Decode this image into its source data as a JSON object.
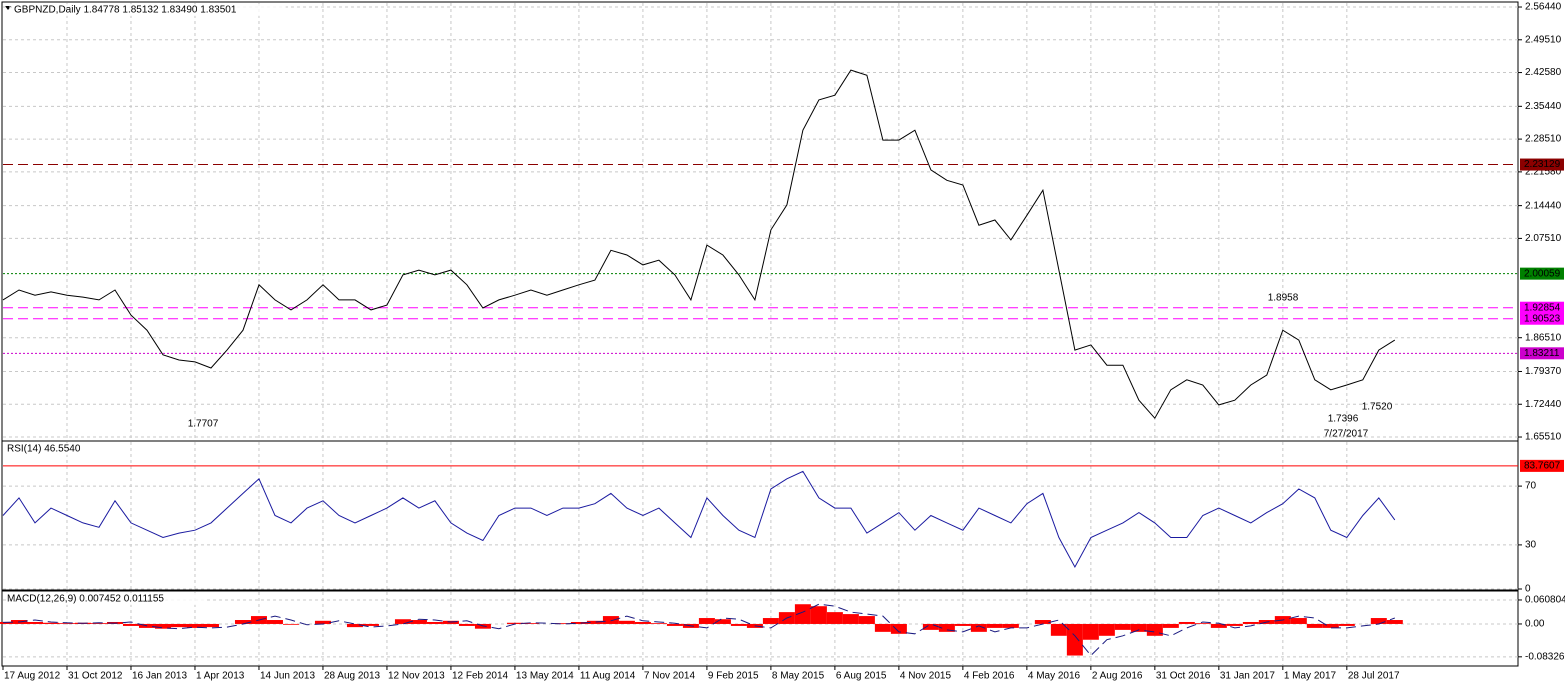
{
  "chart_data": [
    {
      "type": "line",
      "title": "GBPNZD,Daily 1.84778 1.85132 1.83490 1.83501",
      "color": "#000000",
      "grid": true,
      "x": [
        0,
        1,
        2,
        3,
        4,
        5,
        6,
        7,
        8,
        9,
        10,
        11,
        12,
        13,
        14,
        15,
        16,
        17,
        18,
        19,
        20,
        21,
        22,
        23,
        24,
        25,
        26,
        27,
        28,
        29,
        30,
        31,
        32,
        33,
        34,
        35,
        36,
        37,
        38,
        39,
        40,
        41,
        42,
        43,
        44,
        45,
        46,
        47,
        48,
        49,
        50,
        51,
        52,
        53,
        54,
        55,
        56,
        57,
        58,
        59,
        60,
        61,
        62,
        63,
        64,
        65,
        66,
        67,
        68,
        69,
        70,
        71,
        72,
        73,
        74,
        75,
        76,
        77,
        78,
        79,
        80,
        81,
        82,
        83,
        84,
        85,
        86,
        87
      ],
      "values": [
        1.945,
        1.966,
        1.955,
        1.962,
        1.955,
        1.951,
        1.945,
        1.966,
        1.913,
        1.881,
        1.829,
        1.818,
        1.814,
        1.801,
        1.839,
        1.881,
        1.977,
        1.945,
        1.924,
        1.945,
        1.977,
        1.945,
        1.945,
        1.924,
        1.934,
        1.998,
        2.008,
        1.998,
        2.008,
        1.977,
        1.928,
        1.945,
        1.955,
        1.966,
        1.955,
        1.966,
        1.977,
        1.987,
        2.05,
        2.04,
        2.019,
        2.029,
        1.998,
        1.945,
        2.061,
        2.04,
        1.998,
        1.945,
        2.093,
        2.146,
        2.304,
        2.368,
        2.378,
        2.431,
        2.42,
        2.283,
        2.283,
        2.304,
        2.22,
        2.198,
        2.188,
        2.103,
        2.114,
        2.072,
        2.124,
        2.177,
        2.008,
        1.839,
        1.85,
        1.807,
        1.807,
        1.733,
        1.695,
        1.755,
        1.776,
        1.765,
        1.723,
        1.733,
        1.765,
        1.786,
        1.881,
        1.86,
        1.776,
        1.755,
        1.765,
        1.776,
        1.839,
        1.86
      ],
      "xlim": [
        0,
        94.7
      ],
      "ylim": [
        1.6488,
        2.5729
      ],
      "yticks": [
        {
          "value": 1.6551,
          "label": "1.65510"
        },
        {
          "value": 1.7244,
          "label": "1.72440"
        },
        {
          "value": 1.7937,
          "label": "1.79370"
        },
        {
          "value": 1.8651,
          "label": "1.86510"
        },
        {
          "value": 2.0751,
          "label": "2.07510"
        },
        {
          "value": 2.1444,
          "label": "2.14440"
        },
        {
          "value": 2.2158,
          "label": "2.21580"
        },
        {
          "value": 2.2851,
          "label": "2.28510"
        },
        {
          "value": 2.3544,
          "label": "2.35440"
        },
        {
          "value": 2.4258,
          "label": "2.42580"
        },
        {
          "value": 2.4951,
          "label": "2.49510"
        },
        {
          "value": 2.5644,
          "label": "2.56440"
        }
      ],
      "hlines": [
        {
          "value": 2.23129,
          "color": "#8b0000",
          "style": "dashed"
        },
        {
          "value": 2.00059,
          "color": "#008000",
          "style": "dotted"
        },
        {
          "value": 1.92854,
          "color": "#ff00ff",
          "style": "dashed"
        },
        {
          "value": 1.90523,
          "color": "#ff00ff",
          "style": "dashed"
        },
        {
          "value": 1.83211,
          "color": "#cc00cc",
          "style": "dotted"
        }
      ],
      "annotations": [
        {
          "text": "1.7707",
          "color": "#2e8b2e"
        },
        {
          "text": "1.8958",
          "color": "#b03a3a"
        },
        {
          "text": "1.7396",
          "color": "#3050c0"
        },
        {
          "text": "1.7520",
          "color": "#b03a3a"
        },
        {
          "text": "7/27/2017",
          "color": "#e02020"
        }
      ]
    },
    {
      "type": "line",
      "title": "RSI(14) 46.5540",
      "color": "#1a1aa0",
      "grid": true,
      "x": [
        0,
        1,
        2,
        3,
        4,
        5,
        6,
        7,
        8,
        9,
        10,
        11,
        12,
        13,
        14,
        15,
        16,
        17,
        18,
        19,
        20,
        21,
        22,
        23,
        24,
        25,
        26,
        27,
        28,
        29,
        30,
        31,
        32,
        33,
        34,
        35,
        36,
        37,
        38,
        39,
        40,
        41,
        42,
        43,
        44,
        45,
        46,
        47,
        48,
        49,
        50,
        51,
        52,
        53,
        54,
        55,
        56,
        57,
        58,
        59,
        60,
        61,
        62,
        63,
        64,
        65,
        66,
        67,
        68,
        69,
        70,
        71,
        72,
        73,
        74,
        75,
        76,
        77,
        78,
        79,
        80,
        81,
        82,
        83,
        84,
        85,
        86,
        87
      ],
      "values": [
        50,
        62,
        45,
        55,
        50,
        45,
        42,
        60,
        45,
        40,
        35,
        38,
        40,
        45,
        55,
        65,
        75,
        50,
        45,
        55,
        60,
        50,
        45,
        50,
        55,
        62,
        55,
        60,
        45,
        38,
        33,
        50,
        55,
        55,
        50,
        55,
        55,
        58,
        65,
        55,
        50,
        55,
        45,
        35,
        62,
        50,
        40,
        35,
        68,
        75,
        80,
        62,
        55,
        55,
        38,
        45,
        52,
        40,
        50,
        45,
        40,
        55,
        50,
        45,
        58,
        65,
        35,
        15,
        35,
        40,
        45,
        52,
        45,
        35,
        35,
        50,
        55,
        50,
        45,
        52,
        58,
        68,
        62,
        40,
        35,
        50,
        62,
        47
      ],
      "xlim": [
        0,
        94.7
      ],
      "ylim": [
        0,
        100
      ],
      "yticks": [
        0,
        30,
        70
      ],
      "hlines": [
        {
          "value": 83.7607,
          "color": "#ff0000",
          "style": "solid"
        }
      ]
    },
    {
      "type": "bar",
      "title": "MACD(12,26,9) 0.007452 0.011155",
      "grid": true,
      "x": [
        0,
        1,
        2,
        3,
        4,
        5,
        6,
        7,
        8,
        9,
        10,
        11,
        12,
        13,
        14,
        15,
        16,
        17,
        18,
        19,
        20,
        21,
        22,
        23,
        24,
        25,
        26,
        27,
        28,
        29,
        30,
        31,
        32,
        33,
        34,
        35,
        36,
        37,
        38,
        39,
        40,
        41,
        42,
        43,
        44,
        45,
        46,
        47,
        48,
        49,
        50,
        51,
        52,
        53,
        54,
        55,
        56,
        57,
        58,
        59,
        60,
        61,
        62,
        63,
        64,
        65,
        66,
        67,
        68,
        69,
        70,
        71,
        72,
        73,
        74,
        75,
        76,
        77,
        78,
        79,
        80,
        81,
        82,
        83,
        84,
        85,
        86,
        87
      ],
      "series": [
        {
          "color": "#ff0000",
          "values": [
            0.005,
            0.01,
            0.005,
            0.003,
            0.002,
            0.003,
            0.002,
            0.005,
            -0.005,
            -0.01,
            -0.012,
            -0.008,
            -0.01,
            -0.008,
            0,
            0.01,
            0.02,
            0.01,
            -0.002,
            0,
            0.008,
            0,
            -0.008,
            -0.005,
            0,
            0.012,
            0.01,
            0.005,
            0.008,
            -0.005,
            -0.012,
            0,
            0.003,
            0.002,
            0,
            0.002,
            0.005,
            0.008,
            0.02,
            0.008,
            0.005,
            0.002,
            -0.005,
            -0.01,
            0.015,
            0.012,
            -0.005,
            -0.01,
            0.015,
            0.03,
            0.05,
            0.045,
            0.03,
            0.025,
            0.02,
            -0.02,
            -0.025,
            0,
            -0.015,
            -0.02,
            -0.005,
            -0.02,
            -0.01,
            -0.01,
            0,
            0.01,
            -0.03,
            -0.08,
            -0.04,
            -0.03,
            -0.015,
            -0.02,
            -0.03,
            -0.01,
            0.005,
            0.002,
            -0.01,
            -0.005,
            0.005,
            0.01,
            0.02,
            0.015,
            -0.01,
            -0.01,
            -0.005,
            0,
            0.015,
            0.01
          ]
        },
        {
          "color": "#1a1a80",
          "line_style": "dashed",
          "values": [
            0.004,
            0.005,
            0.01,
            0.005,
            0.003,
            0.002,
            0.003,
            0.002,
            0.005,
            -0.005,
            -0.01,
            -0.012,
            -0.008,
            -0.01,
            -0.008,
            0,
            0.01,
            0.02,
            0.01,
            -0.002,
            0,
            0.008,
            0,
            -0.008,
            -0.005,
            0,
            0.012,
            0.01,
            0.005,
            0.008,
            -0.005,
            -0.012,
            0,
            0.003,
            0.002,
            0,
            0.002,
            0.005,
            0.008,
            0.02,
            0.008,
            0.005,
            0.002,
            -0.005,
            -0.01,
            0.015,
            0.012,
            -0.005,
            -0.01,
            0.015,
            0.03,
            0.05,
            0.045,
            0.03,
            0.025,
            0.02,
            -0.02,
            -0.025,
            0,
            -0.015,
            -0.02,
            -0.005,
            -0.02,
            -0.01,
            -0.01,
            0,
            0.01,
            -0.03,
            -0.08,
            -0.04,
            -0.03,
            -0.015,
            -0.02,
            -0.03,
            -0.01,
            0.005,
            0.002,
            -0.01,
            -0.005,
            0.005,
            0.01,
            0.02,
            0.015,
            -0.01,
            -0.01,
            -0.005,
            0,
            0.015
          ]
        }
      ],
      "xlim": [
        0,
        94.7
      ],
      "ylim": [
        -0.104,
        0.081
      ],
      "yticks": [
        -0.083261,
        {
          "value": 0,
          "label": "0.00"
        },
        0.060804
      ],
      "xticks": [
        {
          "value": 0,
          "label": "17 Aug 2012"
        },
        {
          "value": 4,
          "label": "31 Oct 2012"
        },
        {
          "value": 8,
          "label": "16 Jan 2013"
        },
        {
          "value": 12,
          "label": "1 Apr 2013"
        },
        {
          "value": 16,
          "label": "14 Jun 2013"
        },
        {
          "value": 20,
          "label": "28 Aug 2013"
        },
        {
          "value": 24,
          "label": "12 Nov 2013"
        },
        {
          "value": 28,
          "label": "12 Feb 2014"
        },
        {
          "value": 32,
          "label": "13 May 2014"
        },
        {
          "value": 36,
          "label": "11 Aug 2014"
        },
        {
          "value": 40,
          "label": "7 Nov 2014"
        },
        {
          "value": 44,
          "label": "9 Feb 2015"
        },
        {
          "value": 48,
          "label": "8 May 2015"
        },
        {
          "value": 52,
          "label": "6 Aug 2015"
        },
        {
          "value": 56,
          "label": "4 Nov 2015"
        },
        {
          "value": 60,
          "label": "4 Feb 2016"
        },
        {
          "value": 64,
          "label": "4 May 2016"
        },
        {
          "value": 68,
          "label": "2 Aug 2016"
        },
        {
          "value": 72,
          "label": "31 Oct 2016"
        },
        {
          "value": 76,
          "label": "31 Jan 2017"
        },
        {
          "value": 80,
          "label": "1 May 2017"
        },
        {
          "value": 84,
          "label": "28 Jul 2017"
        }
      ]
    }
  ]
}
